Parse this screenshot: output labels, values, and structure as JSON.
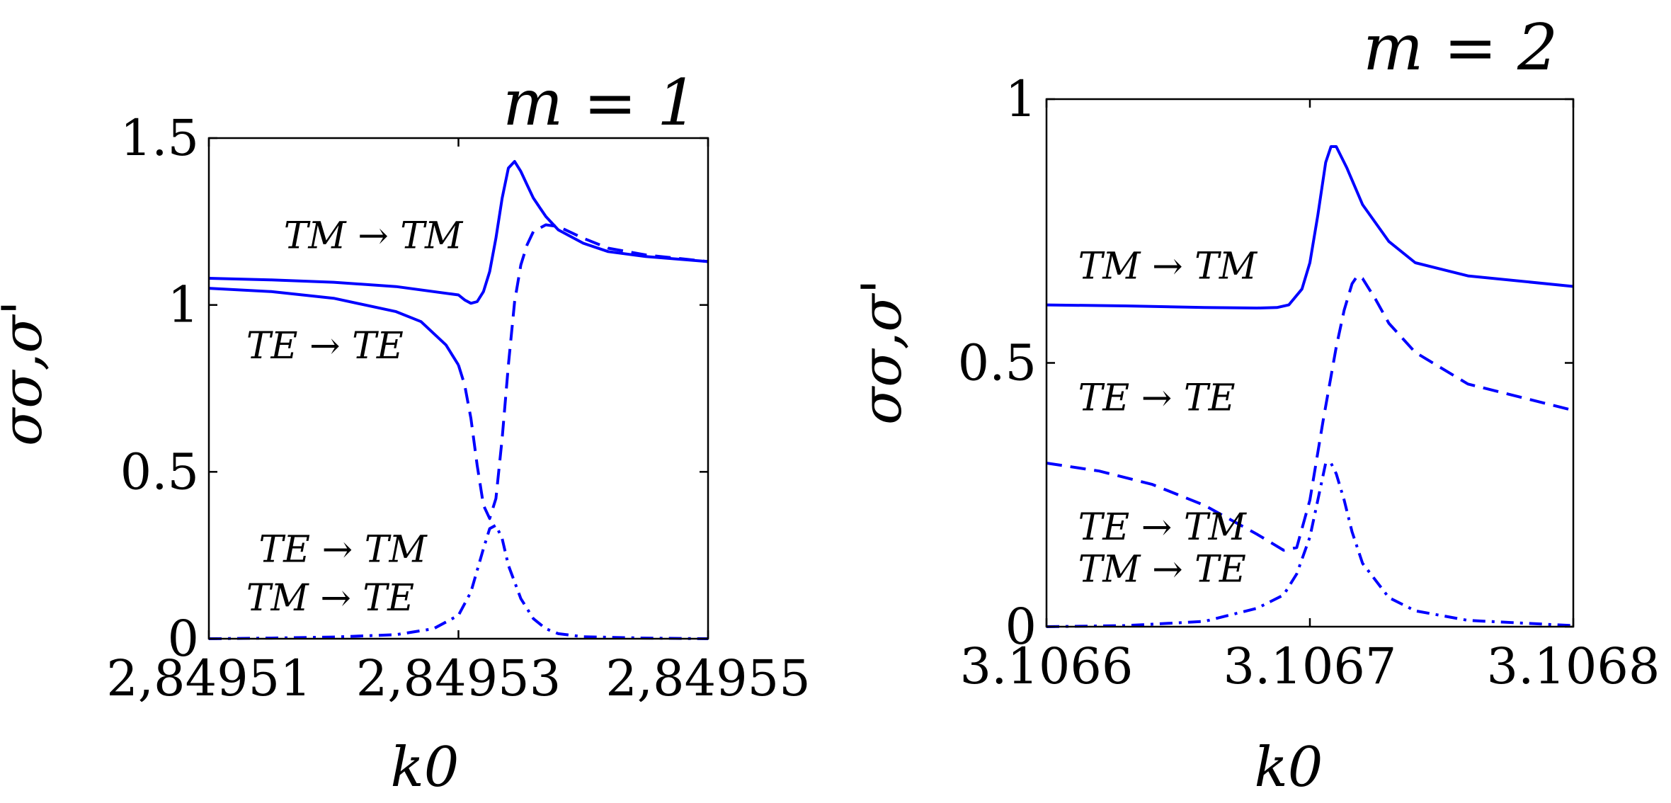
{
  "chart_data": [
    {
      "type": "line",
      "title": "m = 1",
      "xlabel": "k0",
      "ylabel": "σσ,σ'",
      "xlim": [
        2.84951,
        2.84955
      ],
      "ylim": [
        0,
        1.5
      ],
      "x_ticks": [
        "2,84951",
        "2,84953",
        "2,84955"
      ],
      "x_tick_values": [
        2.84951,
        2.84953,
        2.84955
      ],
      "y_ticks": [
        "0",
        "0.5",
        "1",
        "1.5"
      ],
      "y_tick_values": [
        0,
        0.5,
        1,
        1.5
      ],
      "grid": false,
      "color": "#0000ff",
      "annotations": [
        {
          "text": "TM → TM",
          "x": 2.849516,
          "y": 1.17
        },
        {
          "text": "TE → TE",
          "x": 2.849513,
          "y": 0.84
        },
        {
          "text": "TE → TM",
          "x": 2.849514,
          "y": 0.23
        },
        {
          "text": "TM → TE",
          "x": 2.849513,
          "y": 0.085
        }
      ],
      "series": [
        {
          "label": "TM → TM",
          "style": "solid",
          "x": [
            2.84951,
            2.849515,
            2.84952,
            2.849525,
            2.84953,
            2.8495305,
            2.849531,
            2.8495315,
            2.849532,
            2.8495325,
            2.849533,
            2.8495335,
            2.849534,
            2.8495345,
            2.849535,
            2.8495355,
            2.849536,
            2.849537,
            2.849538,
            2.84954,
            2.849542,
            2.849545,
            2.84955
          ],
          "y": [
            1.08,
            1.075,
            1.068,
            1.055,
            1.03,
            1.015,
            1.005,
            1.01,
            1.04,
            1.1,
            1.2,
            1.32,
            1.41,
            1.43,
            1.4,
            1.36,
            1.32,
            1.265,
            1.225,
            1.185,
            1.16,
            1.145,
            1.13
          ]
        },
        {
          "label": "TE → TE",
          "style": "solid",
          "x": [
            2.84951,
            2.849515,
            2.84952,
            2.849525,
            2.849527,
            2.849529,
            2.84953
          ],
          "y": [
            1.05,
            1.04,
            1.02,
            0.98,
            0.95,
            0.88,
            0.82
          ]
        },
        {
          "label": "TE → TE",
          "style": "dashed",
          "x": [
            2.84953,
            2.8495305,
            2.849531,
            2.8495315,
            2.849532,
            2.8495325,
            2.849533,
            2.8495335,
            2.849534,
            2.8495345,
            2.849535,
            2.8495355,
            2.849536,
            2.849537,
            2.849538,
            2.84954,
            2.849542,
            2.849545,
            2.84955
          ],
          "y": [
            0.82,
            0.76,
            0.66,
            0.52,
            0.4,
            0.36,
            0.42,
            0.6,
            0.82,
            1.01,
            1.12,
            1.18,
            1.22,
            1.24,
            1.235,
            1.2,
            1.17,
            1.15,
            1.13
          ]
        },
        {
          "label": "TE → TM / TM → TE",
          "style": "dash-dot",
          "x": [
            2.84951,
            2.849515,
            2.84952,
            2.849525,
            2.849528,
            2.84953,
            2.849531,
            2.849532,
            2.8495325,
            2.849533,
            2.8495335,
            2.849534,
            2.849535,
            2.849536,
            2.849537,
            2.849538,
            2.84954,
            2.849545,
            2.84955
          ],
          "y": [
            0.0,
            0.002,
            0.005,
            0.012,
            0.03,
            0.07,
            0.14,
            0.27,
            0.33,
            0.34,
            0.3,
            0.22,
            0.12,
            0.06,
            0.03,
            0.015,
            0.006,
            0.002,
            0.0
          ]
        }
      ]
    },
    {
      "type": "line",
      "title": "m = 2",
      "xlabel": "k0",
      "ylabel": "σσ,σ'",
      "xlim": [
        3.1066,
        3.1068
      ],
      "ylim": [
        0,
        1
      ],
      "x_ticks": [
        "3.1066",
        "3.1067",
        "3.1068"
      ],
      "x_tick_values": [
        3.1066,
        3.1067,
        3.1068
      ],
      "y_ticks": [
        "0",
        "0.5",
        "1"
      ],
      "y_tick_values": [
        0,
        0.5,
        1
      ],
      "grid": false,
      "color": "#0000ff",
      "annotations": [
        {
          "text": "TM → TM",
          "x": 3.106612,
          "y": 0.66
        },
        {
          "text": "TE → TE",
          "x": 3.106612,
          "y": 0.41
        },
        {
          "text": "TE → TM",
          "x": 3.106612,
          "y": 0.165
        },
        {
          "text": "TM → TE",
          "x": 3.106612,
          "y": 0.085
        }
      ],
      "series": [
        {
          "label": "TM → TM",
          "style": "solid",
          "x": [
            3.1066,
            3.10663,
            3.10666,
            3.10668,
            3.1066875,
            3.106692,
            3.106697,
            3.1067,
            3.106703,
            3.106706,
            3.106708,
            3.10671,
            3.106714,
            3.10672,
            3.10673,
            3.10674,
            3.10676,
            3.1068
          ],
          "y": [
            0.61,
            0.608,
            0.605,
            0.604,
            0.605,
            0.61,
            0.64,
            0.69,
            0.78,
            0.88,
            0.91,
            0.91,
            0.87,
            0.8,
            0.73,
            0.69,
            0.665,
            0.645
          ]
        },
        {
          "label": "TE → TE",
          "style": "dashed",
          "x": [
            3.1066,
            3.10662,
            3.10664,
            3.10666,
            3.10668,
            3.10669,
            3.106695,
            3.1067,
            3.106705,
            3.10671,
            3.106713,
            3.106716,
            3.106718,
            3.10672,
            3.106725,
            3.10673,
            3.10674,
            3.10676,
            3.1068
          ],
          "y": [
            0.31,
            0.295,
            0.27,
            0.23,
            0.175,
            0.145,
            0.15,
            0.24,
            0.39,
            0.53,
            0.6,
            0.65,
            0.665,
            0.66,
            0.62,
            0.575,
            0.52,
            0.46,
            0.41
          ]
        },
        {
          "label": "TE → TM / TM → TE",
          "style": "dash-dot",
          "x": [
            3.1066,
            3.10663,
            3.10666,
            3.10668,
            3.10669,
            3.106695,
            3.1067,
            3.106703,
            3.106706,
            3.106708,
            3.10671,
            3.106713,
            3.106716,
            3.10672,
            3.10673,
            3.10674,
            3.10676,
            3.1068
          ],
          "y": [
            0.0,
            0.002,
            0.01,
            0.035,
            0.06,
            0.1,
            0.17,
            0.24,
            0.31,
            0.31,
            0.29,
            0.24,
            0.18,
            0.12,
            0.055,
            0.03,
            0.012,
            0.002
          ]
        }
      ]
    }
  ]
}
